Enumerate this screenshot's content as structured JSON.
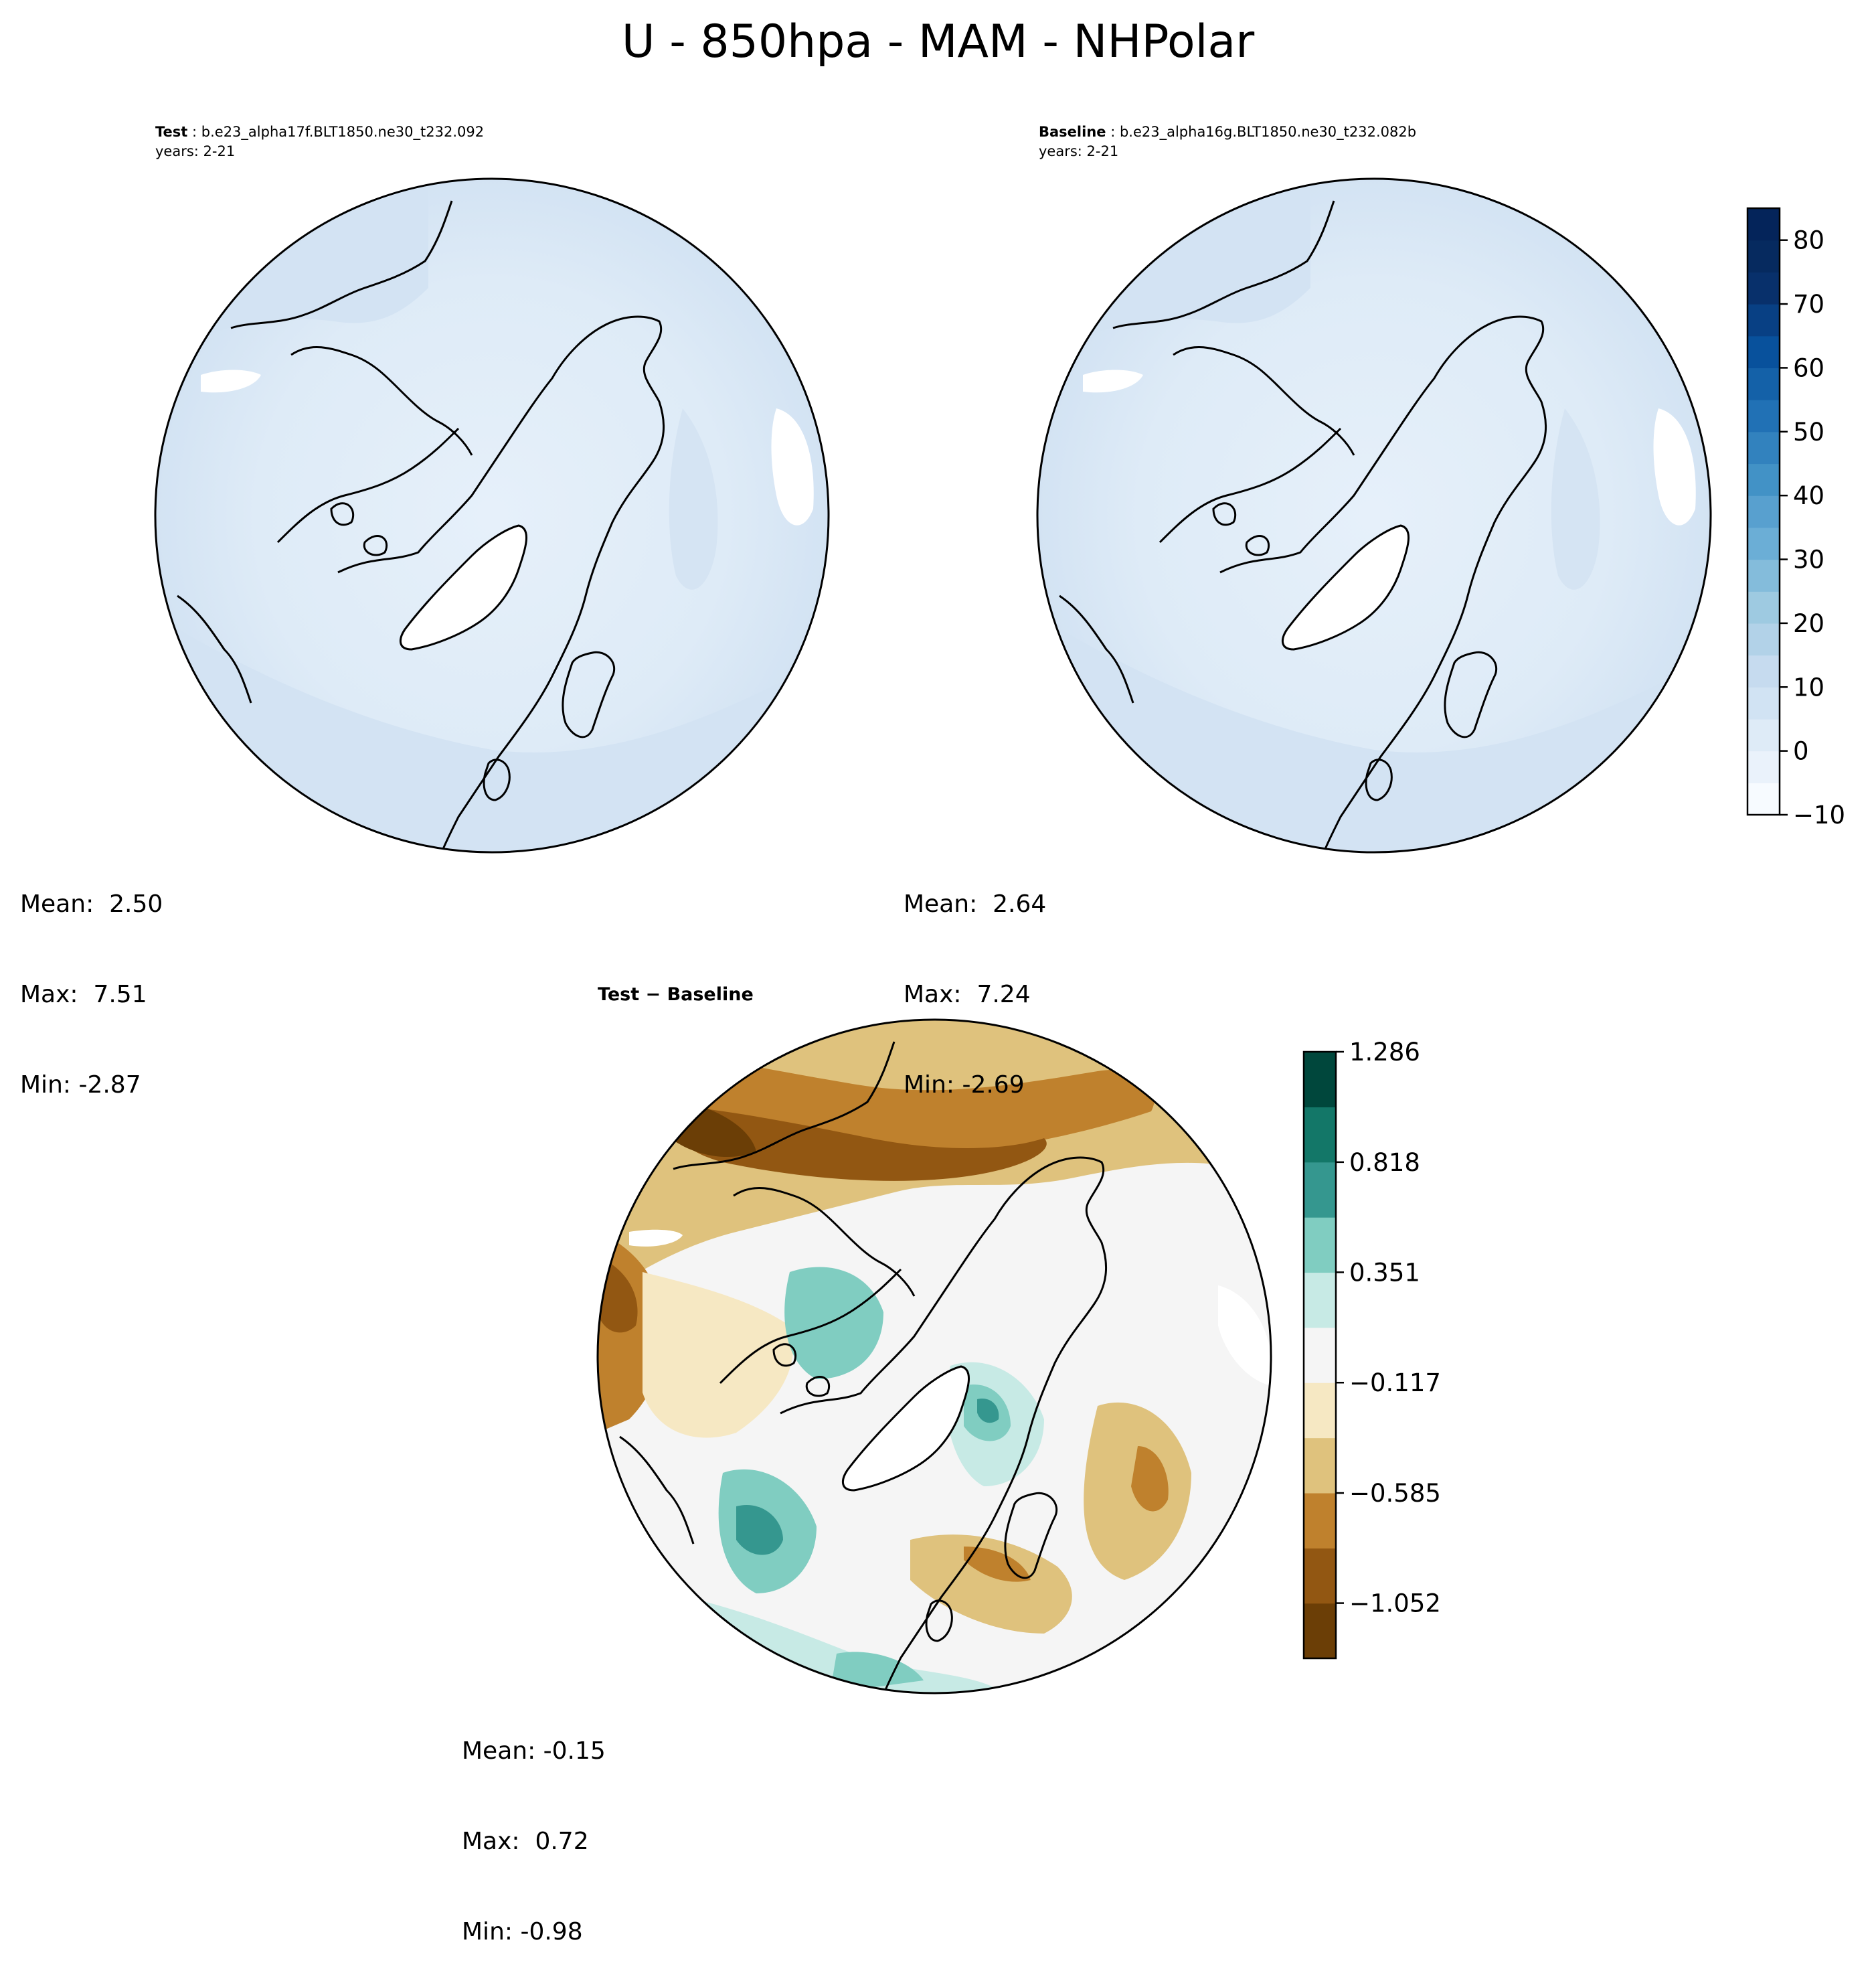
{
  "figure": {
    "title": "U - 850hpa - MAM - NHPolar"
  },
  "panels": {
    "test": {
      "label": "Test",
      "case": "b.e23_alpha17f.BLT1850.ne30_t232.092",
      "years": "years: 2-21",
      "stats": {
        "mean": "Mean:  2.50",
        "max": "Max:  7.51",
        "min": "Min: -2.87"
      }
    },
    "baseline": {
      "label": "Baseline",
      "case": "b.e23_alpha16g.BLT1850.ne30_t232.082b",
      "years": "years: 2-21",
      "stats": {
        "mean": "Mean:  2.64",
        "max": "Max:  7.24",
        "min": "Min: -2.69"
      }
    },
    "difference": {
      "title_left": "Test",
      "title_sep": "−",
      "title_right": "Baseline",
      "stats": {
        "mean": "Mean: -0.15",
        "max": "Max:  0.72",
        "min": "Min: -0.98"
      }
    }
  },
  "colorbars": {
    "field": {
      "tick_labels": [
        "80",
        "70",
        "60",
        "50",
        "40",
        "30",
        "20",
        "10",
        "0",
        "−10"
      ],
      "tick_values": [
        80,
        70,
        60,
        50,
        40,
        30,
        20,
        10,
        0,
        -10
      ],
      "range": [
        -10,
        85
      ],
      "levels": [
        -10,
        -5,
        0,
        5,
        10,
        15,
        20,
        25,
        30,
        35,
        40,
        45,
        50,
        55,
        60,
        65,
        70,
        75,
        80,
        85
      ],
      "colormap": "Blues",
      "colors": [
        "#f7fbff",
        "#eaf2fb",
        "#deebf7",
        "#d1e3f3",
        "#c6dbef",
        "#b2d2e8",
        "#9ecae1",
        "#84bcdb",
        "#6baed6",
        "#58a0cf",
        "#4292c6",
        "#3282be",
        "#2171b5",
        "#1461a8",
        "#08519c",
        "#084084",
        "#08306b",
        "#062a5f",
        "#04245a"
      ]
    },
    "difference": {
      "tick_labels": [
        "1.286",
        "0.818",
        "0.351",
        "−0.117",
        "−0.585",
        "−1.052"
      ],
      "tick_values": [
        1.286,
        0.818,
        0.351,
        -0.117,
        -0.585,
        -1.052
      ],
      "range": [
        -1.286,
        1.286
      ],
      "colormap": "BrBG",
      "colors": [
        "#6b3e06",
        "#925712",
        "#bf812d",
        "#dfc27d",
        "#f6e8c3",
        "#f5f5f5",
        "#c7eae5",
        "#80cdc1",
        "#35978f",
        "#137768",
        "#00473c"
      ]
    }
  }
}
